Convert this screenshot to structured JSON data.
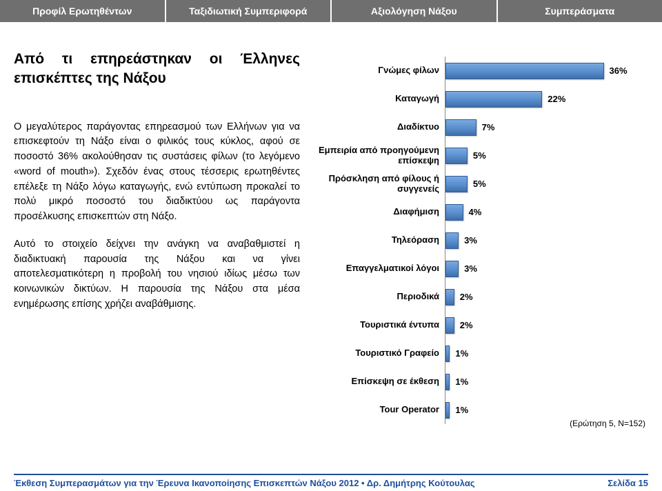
{
  "colors": {
    "tab": "#6f6f6f",
    "rule": "#1d4f9c",
    "footer_text": "#1d4f9c",
    "bar_border": "#2d5a9a"
  },
  "tabs": [
    {
      "label": "Προφίλ Ερωτηθέντων"
    },
    {
      "label": "Ταξιδιωτική Συμπεριφορά"
    },
    {
      "label": "Αξιολόγηση Νάξου"
    },
    {
      "label": "Συμπεράσματα"
    }
  ],
  "heading": "Από τι επηρεάστηκαν οι Έλληνες επισκέπτες της Νάξου",
  "para1": "Ο μεγαλύτερος παράγοντας επηρεασμού των Ελλήνων για να επισκεφτούν τη Νάξο είναι ο φιλικός τους κύκλος, αφού σε ποσοστό 36% ακολούθησαν τις συστάσεις φίλων (το λεγόμενο «word of mouth»). Σχεδόν ένας στους τέσσερις ερωτηθέντες επέλεξε τη Νάξο λόγω καταγωγής, ενώ εντύπωση προκαλεί το πολύ μικρό ποσοστό του διαδικτύου ως παράγοντα προσέλκυσης επισκεπτών στη Νάξο.",
  "para2": "Αυτό το στοιχείο δείχνει την ανάγκη να αναβαθμιστεί η διαδικτυακή παρουσία της Νάξου και να γίνει αποτελεσματικότερη η προβολή του νησιού ιδίως μέσω των κοινωνικών δικτύων. Η παρουσία της Νάξου στα μέσα ενημέρωσης επίσης χρήζει αναβάθμισης.",
  "chart": {
    "type": "bar",
    "max_pct": 40,
    "rows": [
      {
        "label": "Γνώμες φίλων",
        "value": 36,
        "display": "36%"
      },
      {
        "label": "Καταγωγή",
        "value": 22,
        "display": "22%"
      },
      {
        "label": "Διαδίκτυο",
        "value": 7,
        "display": "7%"
      },
      {
        "label": "Εμπειρία από προηγούμενη επίσκεψη",
        "value": 5,
        "display": "5%"
      },
      {
        "label": "Πρόσκληση από φίλους ή συγγενείς",
        "value": 5,
        "display": "5%"
      },
      {
        "label": "Διαφήμιση",
        "value": 4,
        "display": "4%"
      },
      {
        "label": "Τηλεόραση",
        "value": 3,
        "display": "3%"
      },
      {
        "label": "Επαγγελματικοί λόγοι",
        "value": 3,
        "display": "3%"
      },
      {
        "label": "Περιοδικά",
        "value": 2,
        "display": "2%"
      },
      {
        "label": "Τουριστικά έντυπα",
        "value": 2,
        "display": "2%"
      },
      {
        "label": "Τουριστικό Γραφείο",
        "value": 1,
        "display": "1%"
      },
      {
        "label": "Επίσκεψη σε έκθεση",
        "value": 1,
        "display": "1%"
      },
      {
        "label": "Tour Operator",
        "value": 1,
        "display": "1%"
      }
    ]
  },
  "question_note": "(Ερώτηση 5, Ν=152)",
  "footer": {
    "left": "Έκθεση Συμπερασμάτων για την Έρευνα Ικανοποίησης Επισκεπτών Νάξου 2012 • Δρ. Δημήτρης Κούτουλας",
    "right": "Σελίδα 15"
  }
}
